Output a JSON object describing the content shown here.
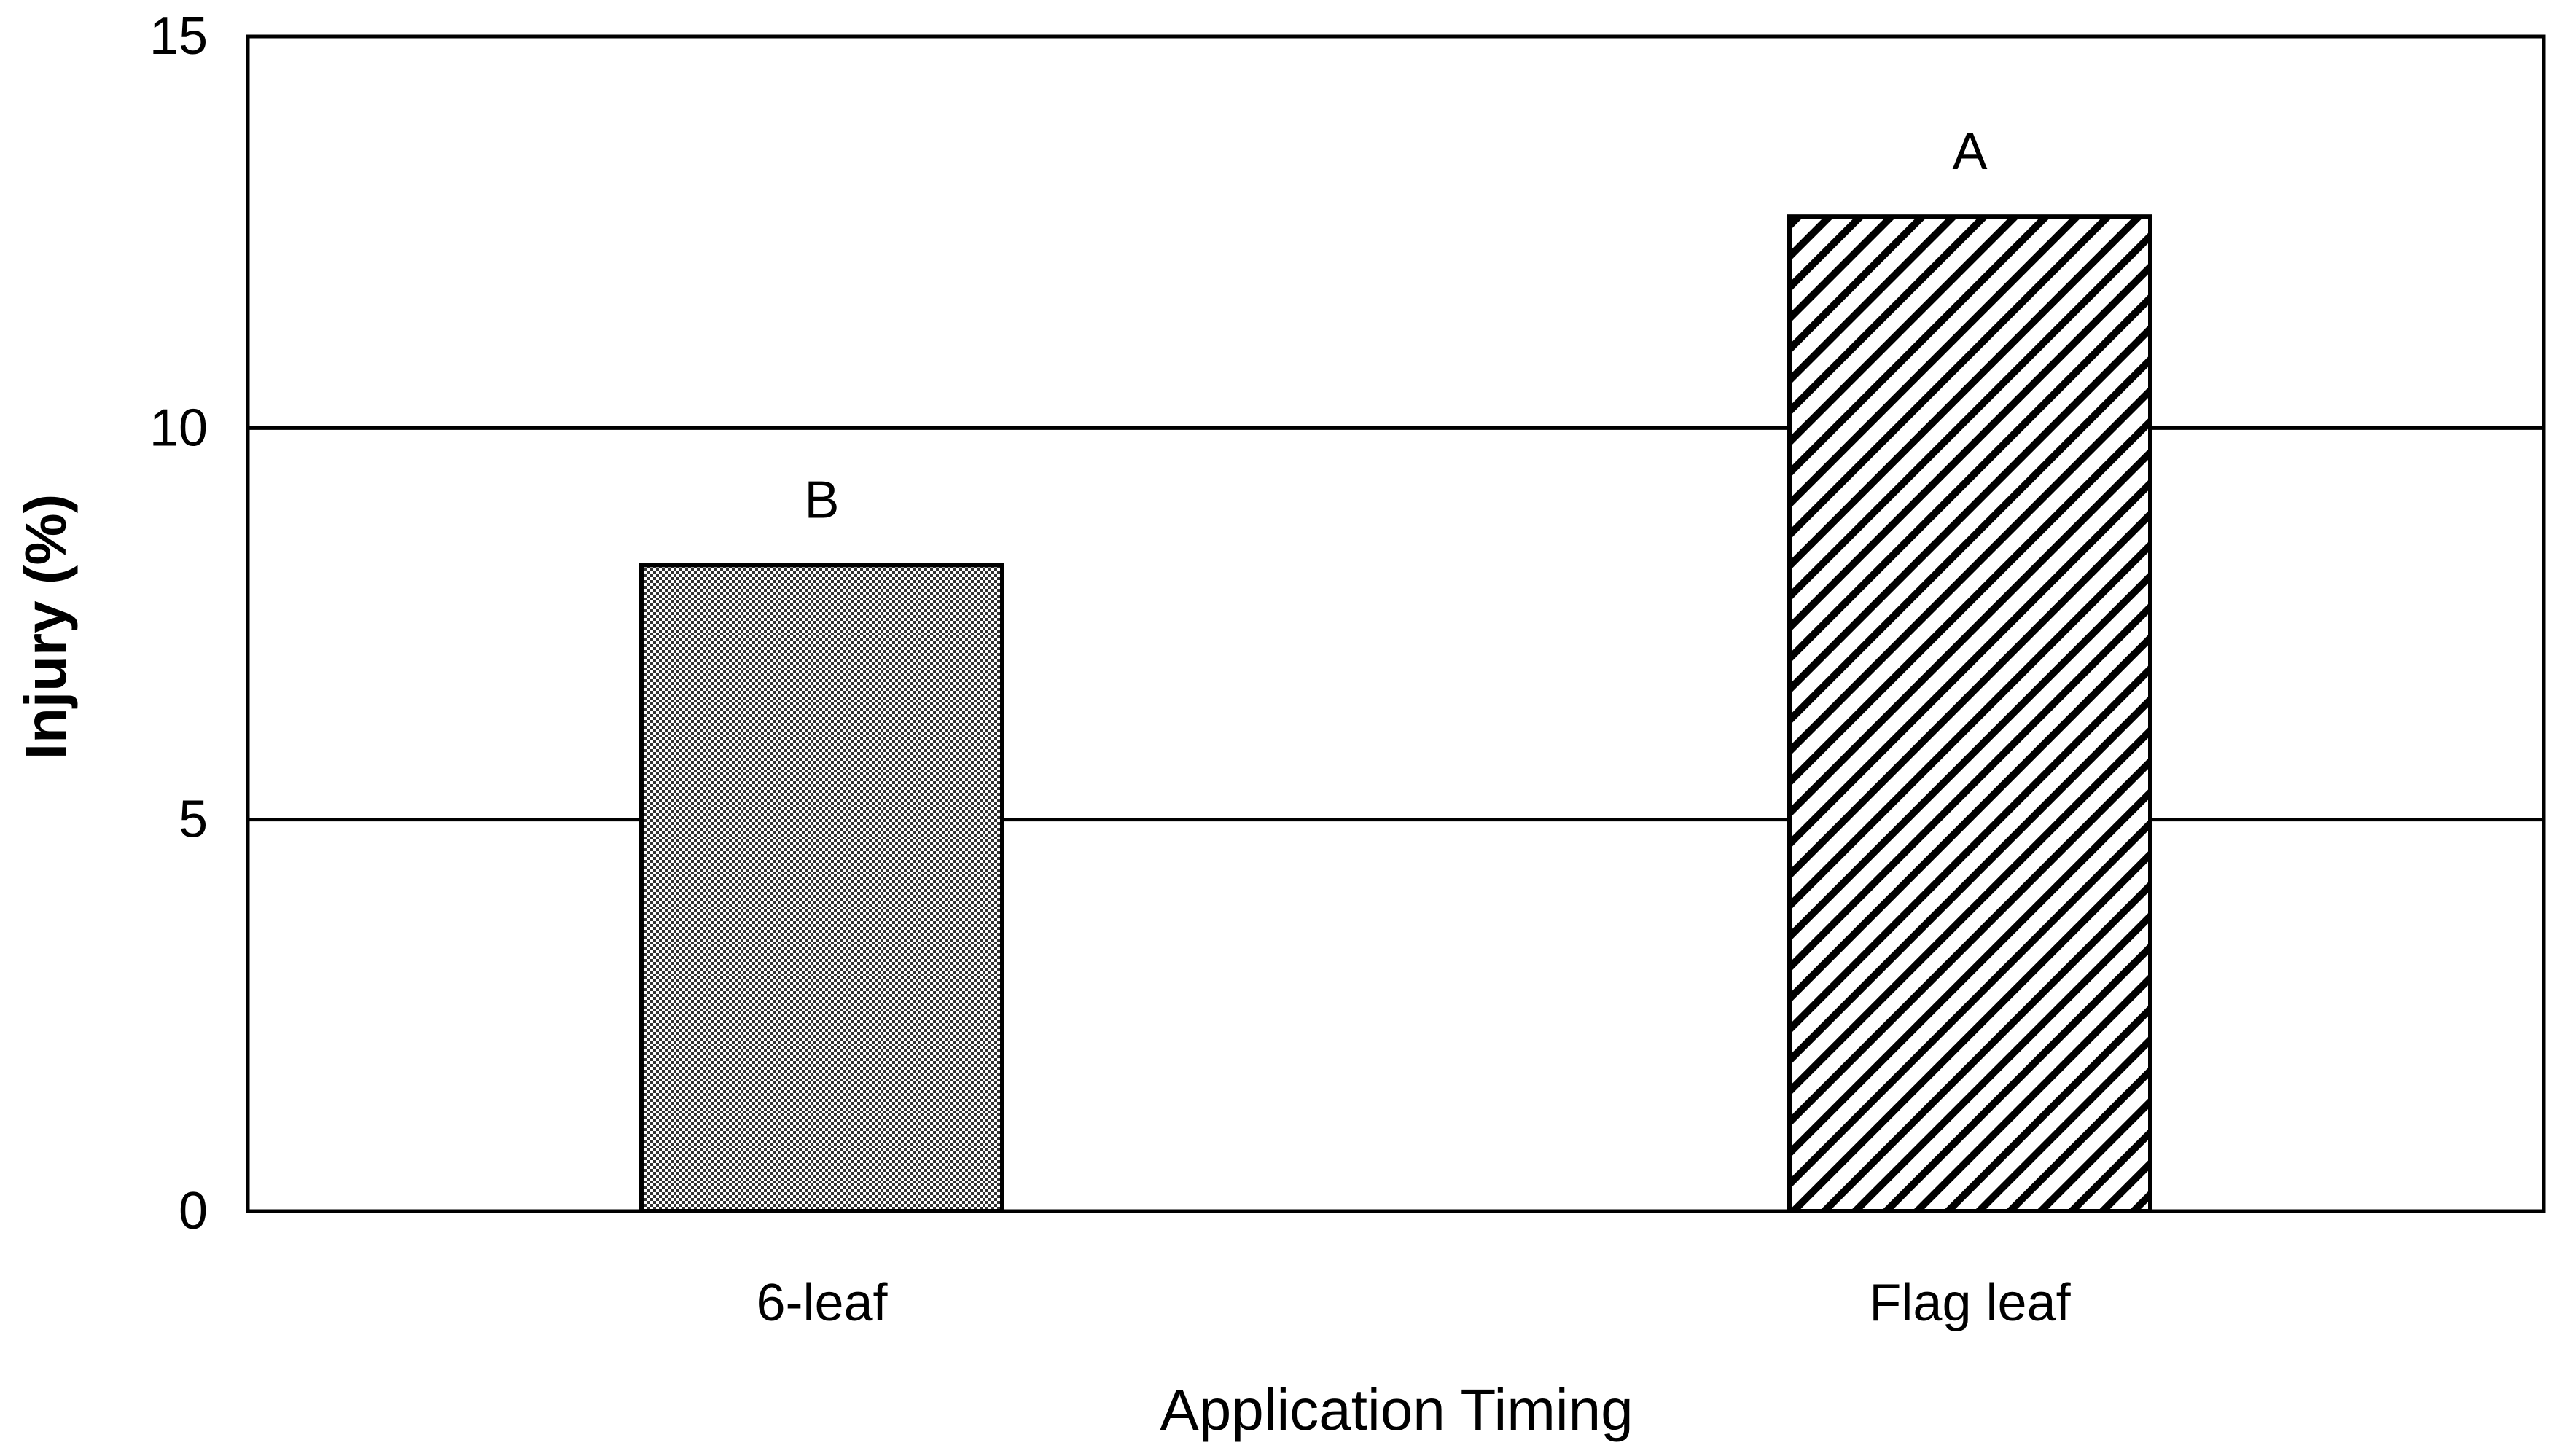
{
  "chart_data": {
    "type": "bar",
    "categories": [
      "6-leaf",
      "Flag leaf"
    ],
    "values": [
      8.25,
      12.7
    ],
    "significance_labels": [
      "B",
      "A"
    ],
    "xlabel": "Application Timing",
    "ylabel": "Injury (%)",
    "ylim": [
      0,
      15
    ],
    "yticks": [
      0,
      5,
      10,
      15
    ],
    "grid": true,
    "bar_patterns": [
      "fine-checker",
      "diagonal-hatch"
    ],
    "colors": {
      "bar_stroke": "#000000",
      "grid": "#000000",
      "background": "#ffffff"
    }
  }
}
